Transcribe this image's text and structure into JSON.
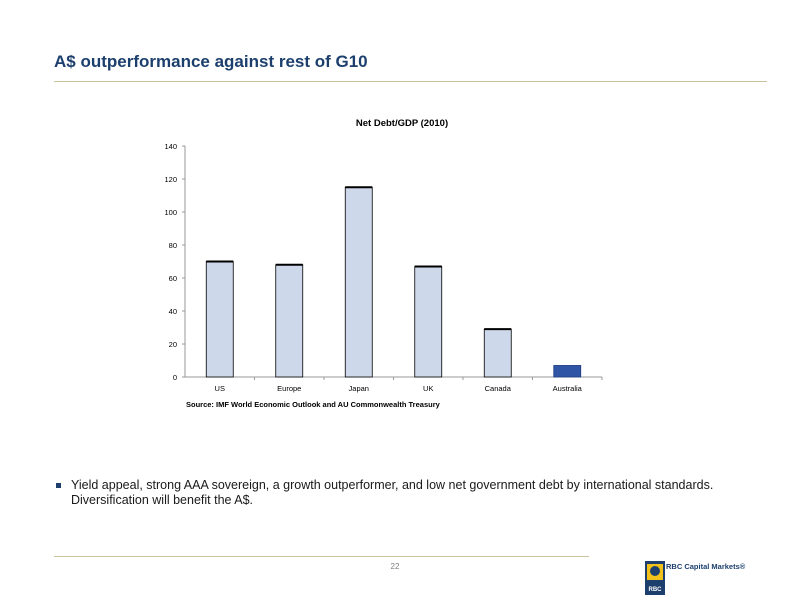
{
  "slide": {
    "title": "A$ outperformance against rest of G10",
    "bullet": "Yield appeal, strong AAA sovereign, a growth outperformer, and low net government debt by international standards. Diversification will benefit the A$.",
    "page_number": "22"
  },
  "logo": {
    "text": "RBC Capital Markets®",
    "badge": "RBC"
  },
  "colors": {
    "title": "#1c3f6e",
    "bar_default": "#cdd9ea",
    "bar_highlight": "#2f55a4",
    "rule": "#c9c39d"
  },
  "chart_data": {
    "type": "bar",
    "title": "Net Debt/GDP (2010)",
    "categories": [
      "US",
      "Europe",
      "Japan",
      "UK",
      "Canada",
      "Australia"
    ],
    "values": [
      70,
      68,
      115,
      67,
      29,
      7
    ],
    "highlight": "Australia",
    "ylim": [
      0,
      140
    ],
    "yticks": [
      0,
      20,
      40,
      60,
      80,
      100,
      120,
      140
    ],
    "xlabel": "",
    "ylabel": "",
    "source": "Source: IMF World Economic Outlook and AU Commonwealth Treasury",
    "grid": false
  }
}
